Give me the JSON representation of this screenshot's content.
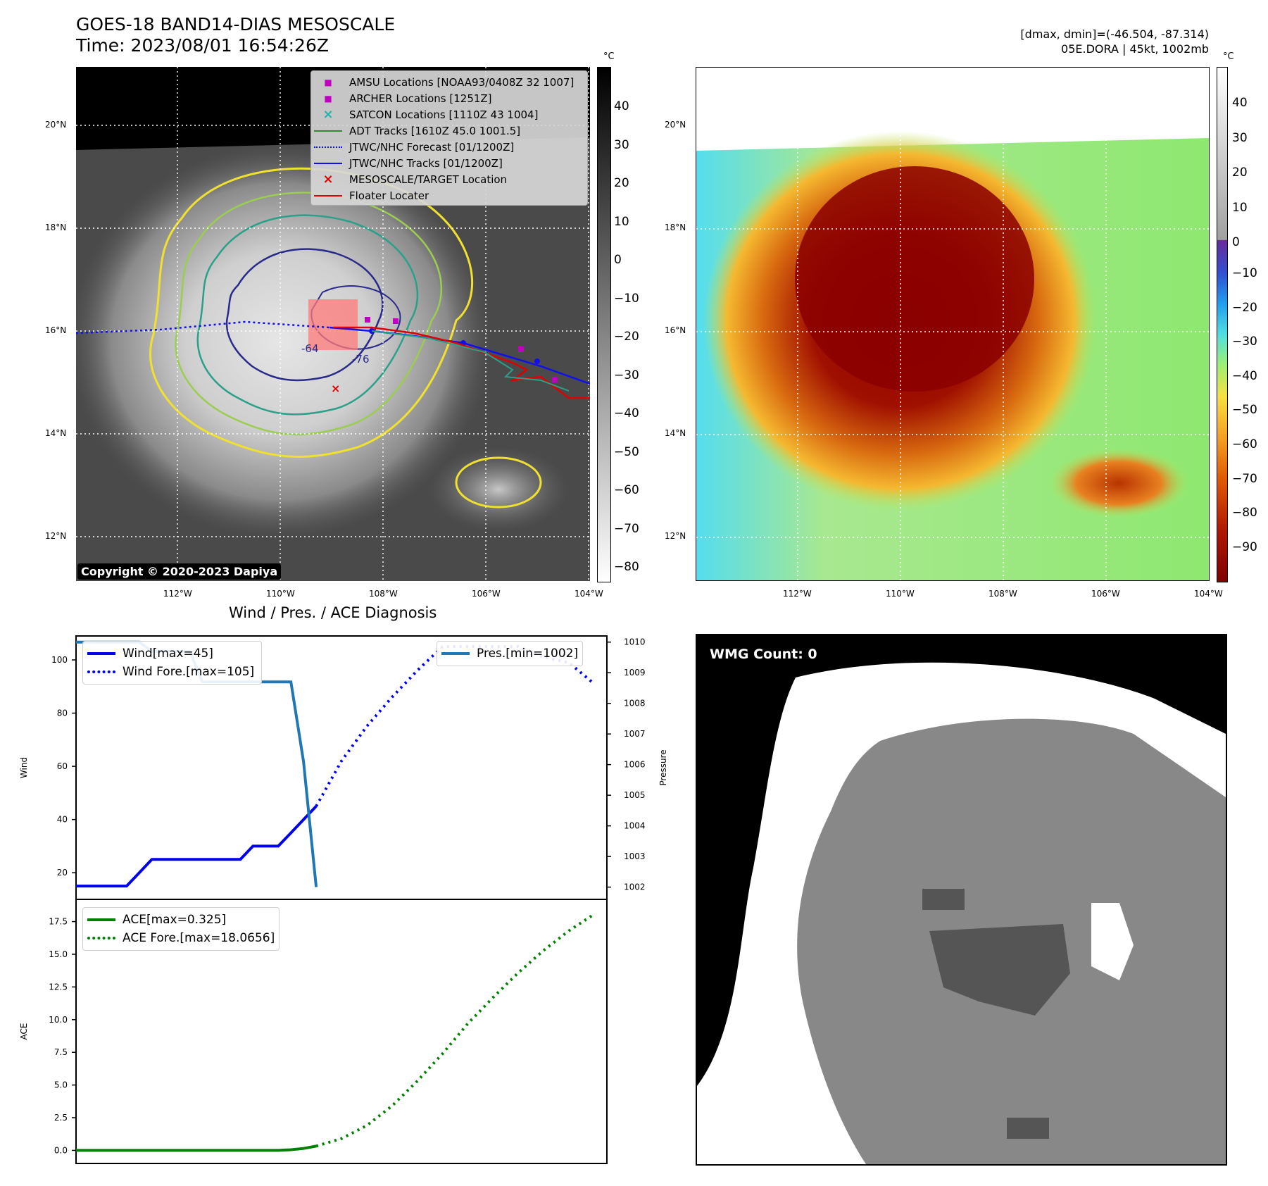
{
  "header": {
    "title_line1": "GOES-18 BAND14-DIAS MESOSCALE",
    "title_line2": "Time: 2023/08/01 16:54:26Z",
    "dmax_dmin": "[dmax, dmin]=(-46.504, -87.314)",
    "storm_info": "05E.DORA | 45kt, 1002mb"
  },
  "map_axes": {
    "lat_labels": [
      "20°N",
      "18°N",
      "16°N",
      "14°N",
      "12°N"
    ],
    "lon_labels": [
      "112°W",
      "110°W",
      "108°W",
      "106°W",
      "104°W"
    ]
  },
  "left_map": {
    "legend": [
      {
        "label": "AMSU Locations [NOAA93/0408Z 32 1007]",
        "marker": "square",
        "color": "#c000c0"
      },
      {
        "label": "ARCHER Locations [1251Z]",
        "marker": "square",
        "color": "#c000c0"
      },
      {
        "label": "SATCON Locations [1110Z 43 1004]",
        "marker": "x",
        "color": "#20b2aa"
      },
      {
        "label": "ADT Tracks [1610Z 45.0 1001.5]",
        "marker": "line",
        "color": "#2e8b2e"
      },
      {
        "label": "JTWC/NHC Forecast [01/1200Z]",
        "marker": "dotted",
        "color": "#1010ee"
      },
      {
        "label": "JTWC/NHC Tracks [01/1200Z]",
        "marker": "line-dot",
        "color": "#1010ee"
      },
      {
        "label": "MESOSCALE/TARGET Location",
        "marker": "x",
        "color": "#e00000"
      },
      {
        "label": "Floater Locater",
        "marker": "line",
        "color": "#e00000"
      }
    ],
    "copyright": "Copyright © 2020-2023 Dapiya",
    "contour_labels": [
      "-64",
      "-76"
    ],
    "colorbar_unit": "°C",
    "colorbar_ticks": [
      "40",
      "30",
      "20",
      "10",
      "0",
      "−10",
      "−20",
      "−30",
      "−40",
      "−50",
      "−60",
      "−70",
      "−80"
    ]
  },
  "right_map": {
    "colorbar_unit": "°C",
    "colorbar_ticks": [
      "40",
      "30",
      "20",
      "10",
      "0",
      "−10",
      "−20",
      "−30",
      "−40",
      "−50",
      "−60",
      "−70",
      "−80",
      "−90"
    ]
  },
  "wmg": {
    "label": "WMG Count: 0"
  },
  "chart_data": [
    {
      "type": "line",
      "title": "Wind / Pres. / ACE Diagnosis",
      "ylabel": "Wind",
      "y2label": "Pressure",
      "ylim": [
        10,
        109
      ],
      "y2lim": [
        1001.6,
        1010.2
      ],
      "yticks": [
        20,
        40,
        60,
        80,
        100
      ],
      "y2ticks": [
        1002,
        1003,
        1004,
        1005,
        1006,
        1007,
        1008,
        1009,
        1010
      ],
      "series": [
        {
          "name": "Wind[max=45]",
          "axis": "left",
          "style": "solid",
          "color": "#0000ee",
          "x": [
            0,
            0.5,
            1,
            1.5,
            2,
            2.5,
            3,
            3.5,
            4,
            4.5,
            5,
            5.5,
            6,
            6.5,
            7,
            7.5,
            8,
            8.5,
            9,
            9.5
          ],
          "values": [
            15,
            15,
            15,
            15,
            15,
            20,
            25,
            25,
            25,
            25,
            25,
            25,
            25,
            25,
            30,
            30,
            30,
            35,
            40,
            45
          ]
        },
        {
          "name": "Wind Fore.[max=105]",
          "axis": "left",
          "style": "dotted",
          "color": "#0000ee",
          "x": [
            9.5,
            10.5,
            11.5,
            12.5,
            13.5,
            14.5,
            15.5,
            16.5,
            17.5,
            18.5,
            19.5,
            20.5
          ],
          "values": [
            45,
            62,
            75,
            86,
            96,
            105,
            105,
            105,
            105,
            101,
            99,
            91
          ]
        },
        {
          "name": "Pres.[min=1002]",
          "axis": "right",
          "style": "solid",
          "color": "#1f77b4",
          "x": [
            0,
            1,
            2,
            2.5,
            3,
            3.5,
            4,
            4.5,
            5,
            6,
            7,
            7.5,
            8,
            8.5,
            9,
            9.5
          ],
          "values": [
            1010,
            1010,
            1010,
            1010,
            1009.7,
            1009.7,
            1009.7,
            1009.7,
            1008.7,
            1008.7,
            1008.7,
            1008.7,
            1008.7,
            1008.7,
            1006.1,
            1002
          ]
        }
      ]
    },
    {
      "type": "line",
      "ylabel": "ACE",
      "ylim": [
        -1,
        19.2
      ],
      "yticks": [
        0.0,
        2.5,
        5.0,
        7.5,
        10.0,
        12.5,
        15.0,
        17.5
      ],
      "series": [
        {
          "name": "ACE[max=0.325]",
          "style": "solid",
          "color": "#008000",
          "x": [
            0,
            1,
            2,
            3,
            4,
            5,
            6,
            7,
            8,
            8.5,
            9,
            9.5
          ],
          "values": [
            0,
            0,
            0,
            0,
            0,
            0,
            0,
            0,
            0,
            0.05,
            0.15,
            0.325
          ]
        },
        {
          "name": "ACE Fore.[max=18.0656]",
          "style": "dotted",
          "color": "#008000",
          "x": [
            9.5,
            10.5,
            11.5,
            12.5,
            13.5,
            14.5,
            15.5,
            16.5,
            17.5,
            18.5,
            19.5,
            20.5
          ],
          "values": [
            0.325,
            0.9,
            1.9,
            3.4,
            5.3,
            7.4,
            9.7,
            11.7,
            13.6,
            15.3,
            16.8,
            18.07
          ]
        }
      ]
    }
  ]
}
